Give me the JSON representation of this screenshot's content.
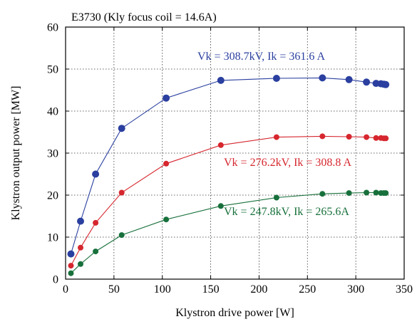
{
  "chart_data": {
    "type": "line",
    "title": "E3730 (Kly focus coil = 14.6A)",
    "xlabel": "Klystron drive power [W]",
    "ylabel": "Klystron output power [MW]",
    "xlim": [
      0,
      350
    ],
    "ylim": [
      0,
      60
    ],
    "xticks": [
      "0",
      "50",
      "100",
      "150",
      "200",
      "250",
      "300",
      "350"
    ],
    "yticks": [
      "0",
      "10",
      "20",
      "30",
      "40",
      "50",
      "60"
    ],
    "grid": true,
    "series": [
      {
        "name": "Vk = 308.7kV, Ik = 361.6 A",
        "color": "#2a3f9f",
        "x": [
          5.5,
          15.5,
          31,
          58,
          104,
          160.5,
          218,
          265.5,
          293,
          311,
          321,
          326,
          329,
          331
        ],
        "y": [
          6.0,
          13.8,
          25.0,
          35.9,
          43.1,
          47.3,
          47.8,
          47.9,
          47.5,
          46.9,
          46.6,
          46.5,
          46.4,
          46.3
        ]
      },
      {
        "name": "Vk = 276.2kV, Ik = 308.8 A",
        "color": "#d6262e",
        "x": [
          5.5,
          15.5,
          31,
          58,
          104,
          160.5,
          218,
          265.5,
          293,
          311,
          321,
          326,
          329,
          331
        ],
        "y": [
          3.2,
          7.5,
          13.4,
          20.6,
          27.5,
          31.9,
          33.8,
          34.0,
          33.9,
          33.8,
          33.6,
          33.6,
          33.5,
          33.5
        ]
      },
      {
        "name": "Vk = 247.8kV, Ik = 265.6A",
        "color": "#17703b",
        "x": [
          5.5,
          15.5,
          31,
          58,
          104,
          160.5,
          218,
          265.5,
          293,
          311,
          321,
          326,
          329,
          331
        ],
        "y": [
          1.4,
          3.6,
          6.6,
          10.5,
          14.2,
          17.4,
          19.4,
          20.3,
          20.5,
          20.6,
          20.6,
          20.5,
          20.5,
          20.5
        ]
      }
    ]
  }
}
